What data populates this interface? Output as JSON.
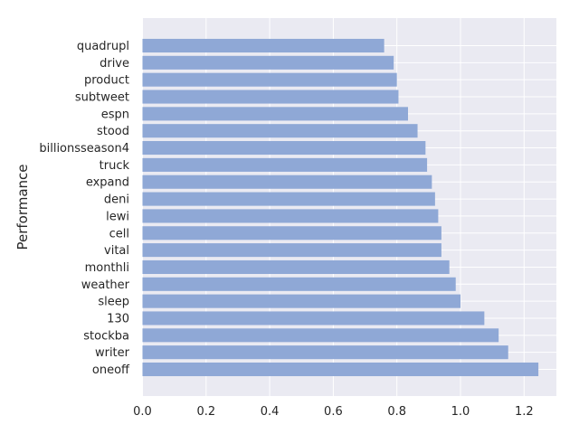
{
  "chart_data": {
    "type": "bar",
    "orientation": "horizontal",
    "title": "",
    "xlabel": "",
    "ylabel": "Performance",
    "categories": [
      "quadrupl",
      "drive",
      "product",
      "subtweet",
      "espn",
      "stood",
      "billionsseason4",
      "truck",
      "expand",
      "deni",
      "lewi",
      "cell",
      "vital",
      "monthli",
      "weather",
      "sleep",
      "130",
      "stockba",
      "writer",
      "oneoff"
    ],
    "values": [
      0.76,
      0.79,
      0.8,
      0.805,
      0.835,
      0.865,
      0.89,
      0.895,
      0.91,
      0.92,
      0.93,
      0.94,
      0.94,
      0.965,
      0.985,
      1.0,
      1.075,
      1.12,
      1.15,
      1.245
    ],
    "xticks": [
      0.0,
      0.2,
      0.4,
      0.6,
      0.8,
      1.0,
      1.2
    ],
    "xtick_labels": [
      "0.0",
      "0.2",
      "0.4",
      "0.6",
      "0.8",
      "1.0",
      "1.2"
    ],
    "xlim": [
      0,
      1.3
    ],
    "grid": true,
    "legend": "none",
    "colors": {
      "bar": "#8fa8d6",
      "plot_background": "#eaeaf2",
      "grid": "#ffffff"
    }
  }
}
